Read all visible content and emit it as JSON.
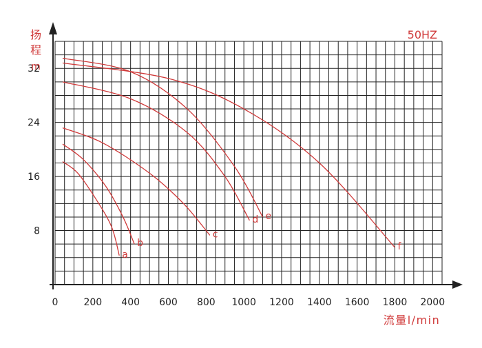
{
  "chart_data": {
    "type": "line",
    "title": "",
    "badge": "50HZ",
    "ylabel_lines": [
      "扬",
      "程",
      "m"
    ],
    "xlabel": "流量l/min",
    "xlim": [
      0,
      2050
    ],
    "ylim": [
      0,
      36
    ],
    "x_ticks": [
      0,
      200,
      400,
      600,
      800,
      1000,
      1200,
      1400,
      1600,
      1800,
      2000
    ],
    "x_tick_labels": [
      "0",
      "200",
      "400",
      "600",
      "800",
      "1000",
      "1200",
      "1400",
      "1600",
      "1800",
      "2000"
    ],
    "y_ticks": [
      8,
      16,
      24,
      32
    ],
    "y_tick_labels": [
      "8",
      "16",
      "24",
      "32"
    ],
    "grid": true,
    "legend": "none",
    "colors": {
      "curve": "#d03a3a",
      "label": "#d03a3a",
      "grid": "#222222",
      "axis": "#222222"
    },
    "series": [
      {
        "label": "a",
        "points": [
          [
            40,
            18.2
          ],
          [
            120,
            16.5
          ],
          [
            220,
            12.5
          ],
          [
            300,
            8.5
          ],
          [
            340,
            4.3
          ]
        ]
      },
      {
        "label": "b",
        "points": [
          [
            40,
            20.8
          ],
          [
            150,
            18.5
          ],
          [
            270,
            14.5
          ],
          [
            360,
            10.0
          ],
          [
            420,
            6.0
          ]
        ]
      },
      {
        "label": "c",
        "points": [
          [
            40,
            23.2
          ],
          [
            250,
            21.0
          ],
          [
            500,
            16.5
          ],
          [
            680,
            12.0
          ],
          [
            820,
            7.3
          ]
        ]
      },
      {
        "label": "d",
        "points": [
          [
            40,
            30.0
          ],
          [
            400,
            27.5
          ],
          [
            700,
            22.5
          ],
          [
            900,
            16.0
          ],
          [
            1030,
            9.5
          ]
        ]
      },
      {
        "label": "e",
        "points": [
          [
            40,
            33.5
          ],
          [
            400,
            31.5
          ],
          [
            700,
            26.0
          ],
          [
            950,
            17.5
          ],
          [
            1100,
            10.0
          ]
        ]
      },
      {
        "label": "f",
        "points": [
          [
            40,
            32.8
          ],
          [
            600,
            30.5
          ],
          [
            1000,
            26.0
          ],
          [
            1400,
            18.0
          ],
          [
            1800,
            5.5
          ]
        ]
      }
    ]
  }
}
